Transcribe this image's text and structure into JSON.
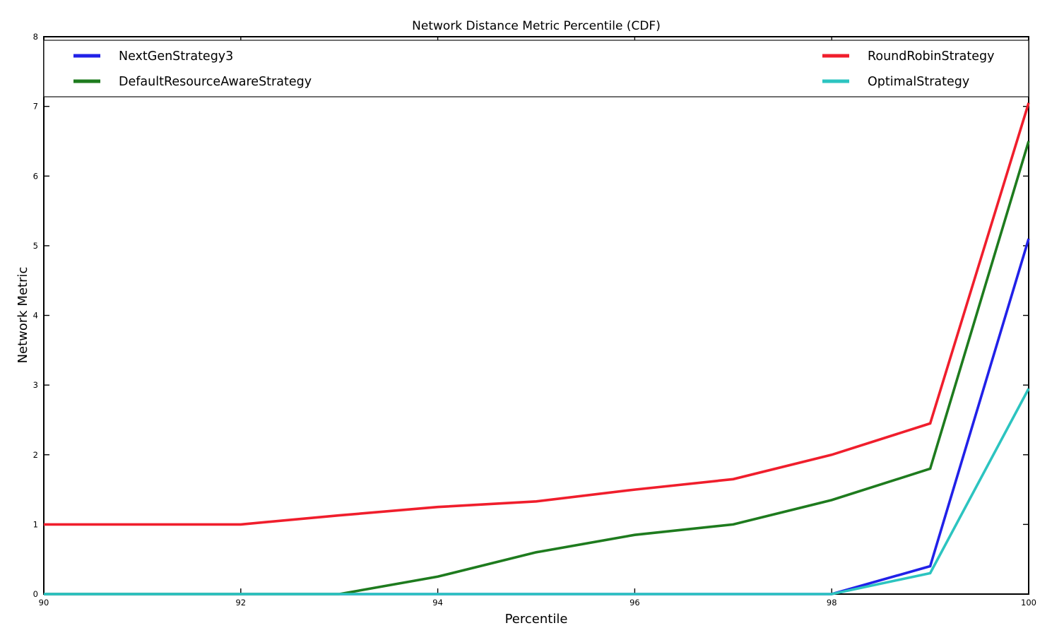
{
  "chart_data": {
    "type": "line",
    "title": "Network Distance Metric Percentile (CDF)",
    "xlabel": "Percentile",
    "ylabel": "Network Metric",
    "xlim": [
      90,
      100
    ],
    "ylim": [
      0,
      8
    ],
    "x_ticks": [
      90,
      92,
      94,
      96,
      98,
      100
    ],
    "y_ticks": [
      0,
      1,
      2,
      3,
      4,
      5,
      6,
      7,
      8
    ],
    "grid": false,
    "legend_position": "top inside, full plot width, two columns",
    "x": [
      90,
      91,
      92,
      93,
      94,
      95,
      96,
      97,
      98,
      99,
      100
    ],
    "series": [
      {
        "name": "NextGenStrategy3",
        "color": "#2121e8",
        "values": [
          0,
          0,
          0,
          0,
          0,
          0,
          0,
          0,
          0,
          0.4,
          5.1
        ]
      },
      {
        "name": "DefaultResourceAwareStrategy",
        "color": "#1e7b1e",
        "values": [
          0,
          0,
          0,
          0,
          0.25,
          0.6,
          0.85,
          1.0,
          1.35,
          1.8,
          6.5
        ]
      },
      {
        "name": "RoundRobinStrategy",
        "color": "#f01e2c",
        "values": [
          1.0,
          1.0,
          1.0,
          1.13,
          1.25,
          1.33,
          1.5,
          1.65,
          2.0,
          2.45,
          7.05
        ]
      },
      {
        "name": "OptimalStrategy",
        "color": "#2cc4c0",
        "values": [
          0,
          0,
          0,
          0,
          0,
          0,
          0,
          0,
          0,
          0.3,
          2.95
        ]
      }
    ],
    "legend_columns": [
      [
        "NextGenStrategy3",
        "DefaultResourceAwareStrategy"
      ],
      [
        "RoundRobinStrategy",
        "OptimalStrategy"
      ]
    ],
    "colors": {
      "axis": "#000000",
      "background": "#ffffff",
      "legend_border": "#222222"
    }
  }
}
